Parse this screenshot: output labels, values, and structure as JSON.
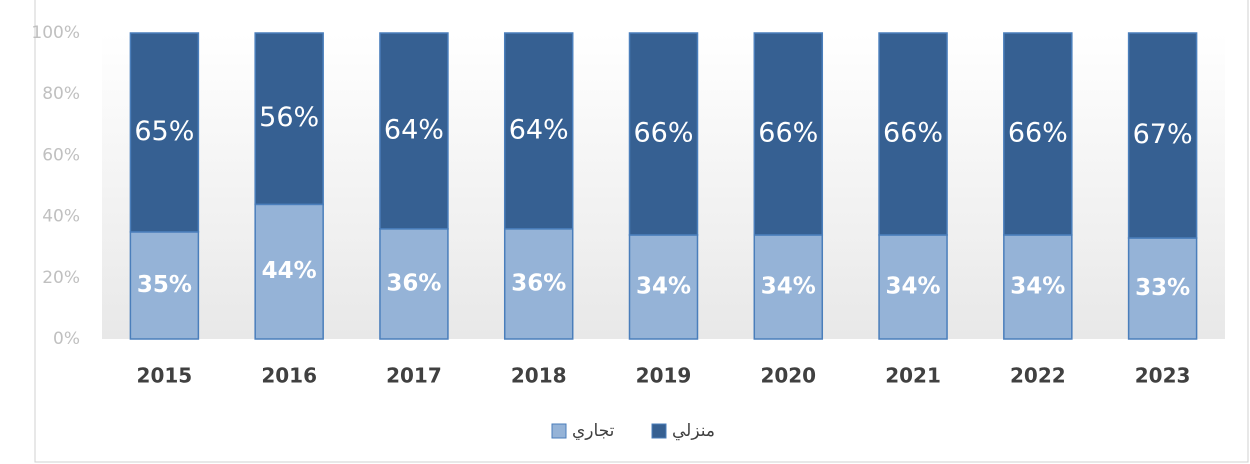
{
  "chart_data": {
    "type": "stacked_bar",
    "categories": [
      "2015",
      "2016",
      "2017",
      "2018",
      "2019",
      "2020",
      "2021",
      "2022",
      "2023"
    ],
    "series": [
      {
        "name": "تجاري",
        "color": "#95b3d7",
        "values": [
          35,
          44,
          36,
          36,
          34,
          34,
          34,
          34,
          33
        ],
        "value_labels": [
          "35%",
          "44%",
          "36%",
          "36%",
          "34%",
          "34%",
          "34%",
          "34%",
          "33%"
        ]
      },
      {
        "name": "منزلي",
        "color": "#366092",
        "values": [
          65,
          56,
          64,
          64,
          66,
          66,
          66,
          66,
          67
        ],
        "value_labels": [
          "65%",
          "56%",
          "64%",
          "64%",
          "66%",
          "66%",
          "66%",
          "66%",
          "67%"
        ]
      }
    ],
    "ylim": [
      0,
      100
    ],
    "yticks": [
      {
        "value": 0,
        "label": "0%"
      },
      {
        "value": 20,
        "label": "20%"
      },
      {
        "value": 40,
        "label": "40%"
      },
      {
        "value": 60,
        "label": "60%"
      },
      {
        "value": 80,
        "label": "80%"
      },
      {
        "value": 100,
        "label": "100%"
      }
    ],
    "grid": false
  }
}
